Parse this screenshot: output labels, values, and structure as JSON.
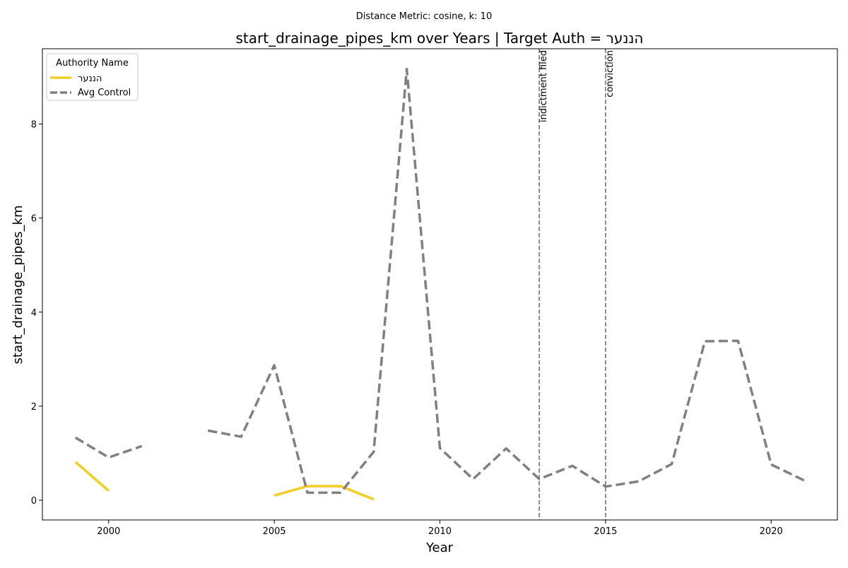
{
  "chart_data": {
    "type": "line",
    "suptitle": "Distance Metric: cosine, k: 10",
    "title": "start_drainage_pipes_km over Years | Target Auth = הננער",
    "xlabel": "Year",
    "ylabel": "start_drainage_pipes_km",
    "xlim": [
      1998,
      2022
    ],
    "ylim": [
      -0.42,
      9.6
    ],
    "xticks": [
      2000,
      2005,
      2010,
      2015,
      2020
    ],
    "yticks": [
      0,
      2,
      4,
      6,
      8
    ],
    "legend": {
      "title": "Authority Name",
      "placement": "top-left",
      "entries": [
        "הננער",
        "Avg Control"
      ]
    },
    "series": [
      {
        "name": "הננער",
        "color": "#f2cd23",
        "dash": "solid",
        "points": [
          [
            1999,
            0.81
          ],
          [
            2000,
            0.2
          ],
          [
            2005,
            0.1
          ],
          [
            2006,
            0.3
          ],
          [
            2007,
            0.3
          ],
          [
            2008,
            0.02
          ]
        ]
      },
      {
        "name": "Avg Control",
        "color": "#808080",
        "dash": "dashed",
        "points": [
          [
            1999,
            1.33
          ],
          [
            2000,
            0.91
          ],
          [
            2001,
            1.15
          ],
          [
            2003,
            1.48
          ],
          [
            2004,
            1.35
          ],
          [
            2005,
            2.87
          ],
          [
            2006,
            0.16
          ],
          [
            2007,
            0.16
          ],
          [
            2008,
            1.03
          ],
          [
            2009,
            9.17
          ],
          [
            2010,
            1.11
          ],
          [
            2011,
            0.45
          ],
          [
            2012,
            1.1
          ],
          [
            2013,
            0.45
          ],
          [
            2014,
            0.73
          ],
          [
            2015,
            0.29
          ],
          [
            2016,
            0.4
          ],
          [
            2017,
            0.77
          ],
          [
            2018,
            3.38
          ],
          [
            2019,
            3.39
          ],
          [
            2020,
            0.76
          ],
          [
            2021,
            0.42
          ]
        ]
      }
    ],
    "events": [
      {
        "x": 2013,
        "label": "indictment filed"
      },
      {
        "x": 2015,
        "label": "conviction"
      }
    ],
    "grid": false
  }
}
